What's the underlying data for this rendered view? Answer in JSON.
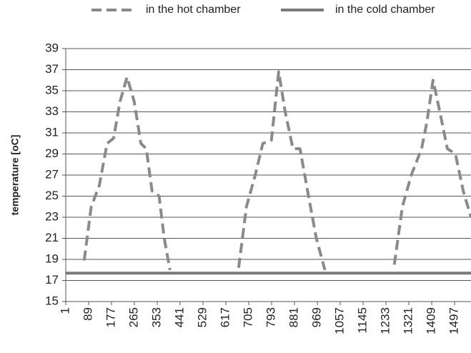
{
  "chart_data": {
    "type": "line",
    "y_label": "temperature    [oC]",
    "x": [
      1,
      72,
      99,
      130,
      160,
      185,
      210,
      237,
      264,
      290,
      311,
      333,
      360,
      380,
      402,
      500,
      600,
      666,
      696,
      730,
      759,
      792,
      820,
      845,
      875,
      902,
      935,
      965,
      998,
      1100,
      1200,
      1265,
      1296,
      1330,
      1370,
      1390,
      1414,
      1440,
      1469,
      1500,
      1530,
      1560
    ],
    "series": [
      {
        "name": "in the hot chamber",
        "color": "#8a8a8a",
        "dashed": true,
        "values": [
          null,
          18.9,
          24,
          26,
          30,
          30.5,
          34,
          36.3,
          34,
          30,
          29.5,
          25.5,
          25,
          21,
          18,
          null,
          null,
          18.2,
          24,
          27,
          30,
          30.3,
          36.8,
          33,
          29.5,
          29.5,
          25,
          21,
          18,
          null,
          null,
          18.5,
          24,
          27,
          29.5,
          32,
          36,
          33,
          29.5,
          29,
          25.5,
          23
        ]
      },
      {
        "name": "in the cold chamber",
        "color": "#7a7a7a",
        "dashed": false,
        "values": [
          17.7,
          17.7,
          17.7,
          17.7,
          17.7,
          17.7,
          17.7,
          17.7,
          17.7,
          17.7,
          17.7,
          17.7,
          17.7,
          17.7,
          17.7,
          17.7,
          17.7,
          17.7,
          17.7,
          17.7,
          17.7,
          17.7,
          17.7,
          17.7,
          17.7,
          17.7,
          17.7,
          17.7,
          17.7,
          17.7,
          17.7,
          17.7,
          17.7,
          17.7,
          17.7,
          17.7,
          17.7,
          17.7,
          17.7,
          17.7,
          17.7,
          17.7
        ]
      }
    ],
    "xlim": [
      1,
      1560
    ],
    "xticks": [
      1,
      89,
      177,
      265,
      353,
      441,
      529,
      617,
      705,
      793,
      881,
      969,
      1057,
      1145,
      1233,
      1321,
      1409,
      1497
    ],
    "ylim": [
      15,
      39
    ],
    "yticks": [
      15,
      17,
      19,
      21,
      23,
      25,
      27,
      29,
      31,
      33,
      35,
      37,
      39
    ],
    "grid": true
  }
}
